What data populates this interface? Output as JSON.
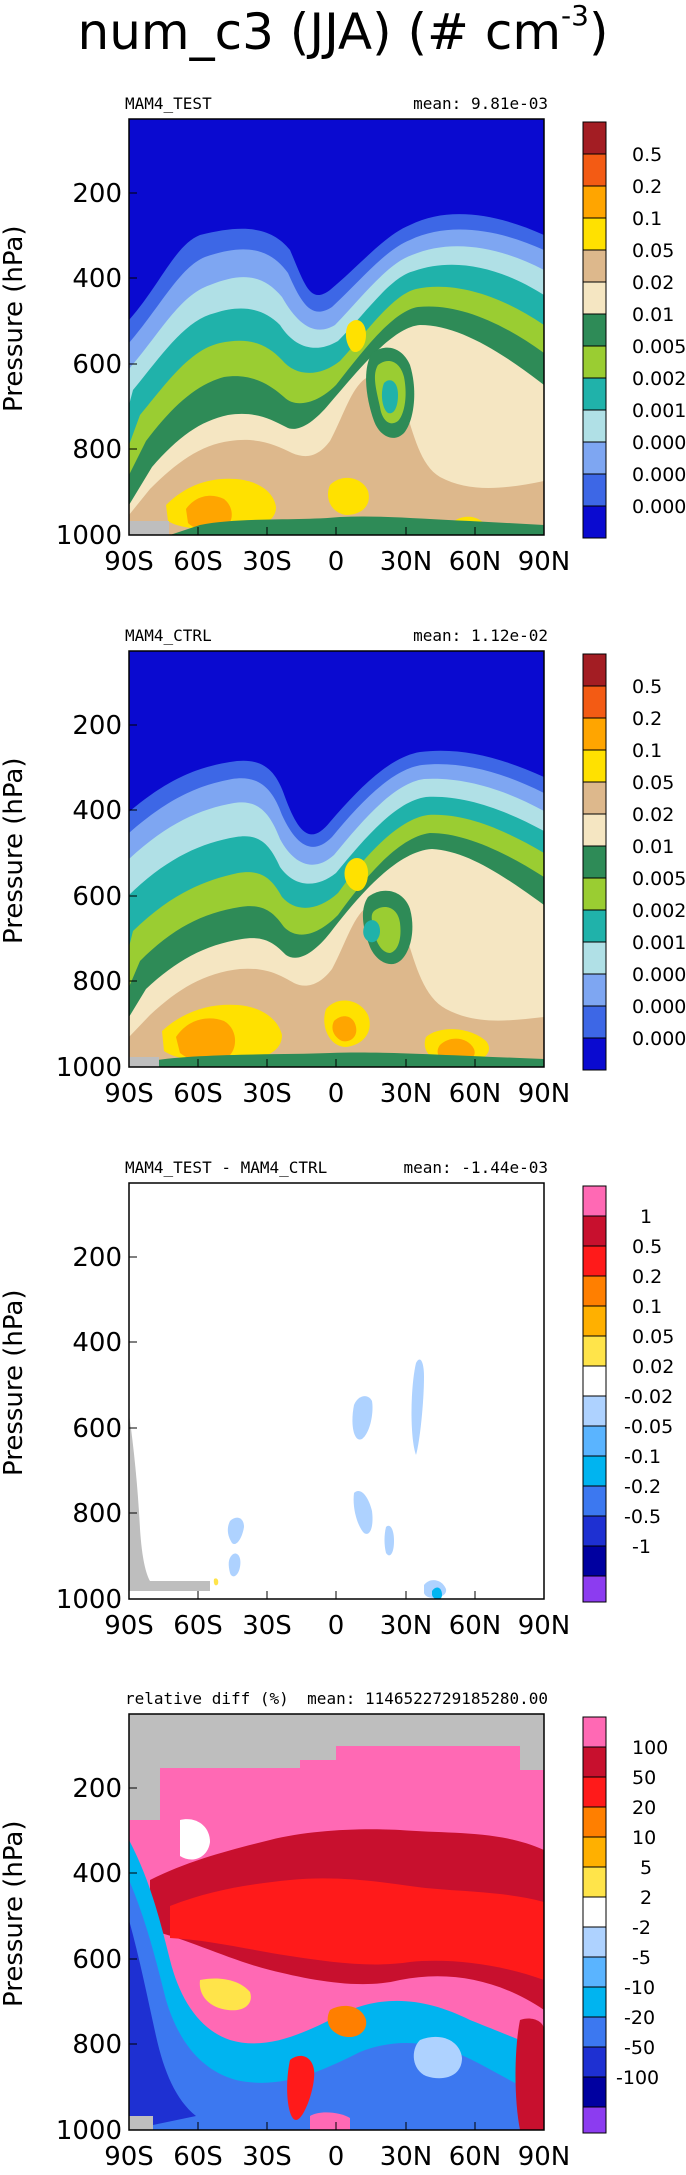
{
  "figure_title": {
    "main": "num_c3 (JJA) (# cm",
    "exp": "-3",
    "close": ")"
  },
  "chart_data": [
    {
      "type": "heatmap",
      "panel_label": "MAM4_TEST",
      "stat_label": "mean: 9.81e-03",
      "ylabel": "Pressure (hPa)",
      "xticks": [
        "90S",
        "60S",
        "30S",
        "0",
        "30N",
        "60N",
        "90N"
      ],
      "yticks": [
        "200",
        "400",
        "600",
        "800",
        "1000"
      ],
      "xlim": [
        -90,
        90
      ],
      "ylim": [
        1000,
        20
      ],
      "colorbar": {
        "labels": [
          "0.5",
          "0.2",
          "0.1",
          "0.05",
          "0.02",
          "0.01",
          "0.005",
          "0.002",
          "0.001",
          "0.0005",
          "0.0002",
          "0.0001"
        ],
        "colors": [
          "#a31d23",
          "#f35b14",
          "#ffa500",
          "#ffe100",
          "#ddb88c",
          "#f5e6c2",
          "#2e8b57",
          "#9acd32",
          "#20b2aa",
          "#b0e0e6",
          "#7ea6f2",
          "#3d67e6",
          "#0a0ad0"
        ]
      }
    },
    {
      "type": "heatmap",
      "panel_label": "MAM4_CTRL",
      "stat_label": "mean: 1.12e-02",
      "ylabel": "Pressure (hPa)",
      "xticks": [
        "90S",
        "60S",
        "30S",
        "0",
        "30N",
        "60N",
        "90N"
      ],
      "yticks": [
        "200",
        "400",
        "600",
        "800",
        "1000"
      ],
      "xlim": [
        -90,
        90
      ],
      "ylim": [
        1000,
        20
      ],
      "colorbar": {
        "labels": [
          "0.5",
          "0.2",
          "0.1",
          "0.05",
          "0.02",
          "0.01",
          "0.005",
          "0.002",
          "0.001",
          "0.0005",
          "0.0002",
          "0.0001"
        ],
        "colors": [
          "#a31d23",
          "#f35b14",
          "#ffa500",
          "#ffe100",
          "#ddb88c",
          "#f5e6c2",
          "#2e8b57",
          "#9acd32",
          "#20b2aa",
          "#b0e0e6",
          "#7ea6f2",
          "#3d67e6",
          "#0a0ad0"
        ]
      }
    },
    {
      "type": "heatmap",
      "panel_label": "MAM4_TEST - MAM4_CTRL",
      "stat_label": "mean: -1.44e-03",
      "ylabel": "Pressure (hPa)",
      "xticks": [
        "90S",
        "60S",
        "30S",
        "0",
        "30N",
        "60N",
        "90N"
      ],
      "yticks": [
        "200",
        "400",
        "600",
        "800",
        "1000"
      ],
      "xlim": [
        -90,
        90
      ],
      "ylim": [
        1000,
        20
      ],
      "colorbar": {
        "labels": [
          "1",
          "0.5",
          "0.2",
          "0.1",
          "0.05",
          "0.02",
          "-0.02",
          "-0.05",
          "-0.1",
          "-0.2",
          "-0.5",
          "-1"
        ],
        "colors": [
          "#ff69b4",
          "#c8102e",
          "#ff1a1a",
          "#ff7f00",
          "#ffb000",
          "#ffe44a",
          "#ffffff",
          "#aed2ff",
          "#5ab4ff",
          "#00b4f0",
          "#3c78f0",
          "#1e30d2",
          "#0000a0",
          "#8c3cf0"
        ]
      }
    },
    {
      "type": "heatmap",
      "panel_label": "relative diff (%)",
      "stat_label": "mean: 1146522729185280.00",
      "ylabel": "Pressure (hPa)",
      "xticks": [
        "90S",
        "60S",
        "30S",
        "0",
        "30N",
        "60N",
        "90N"
      ],
      "yticks": [
        "200",
        "400",
        "600",
        "800",
        "1000"
      ],
      "xlim": [
        -90,
        90
      ],
      "ylim": [
        1000,
        20
      ],
      "colorbar": {
        "labels": [
          "100",
          "50",
          "20",
          "10",
          "5",
          "2",
          "-2",
          "-5",
          "-10",
          "-20",
          "-50",
          "-100"
        ],
        "colors": [
          "#ff69b4",
          "#c8102e",
          "#ff1a1a",
          "#ff7f00",
          "#ffb000",
          "#ffe44a",
          "#ffffff",
          "#aed2ff",
          "#5ab4ff",
          "#00b4f0",
          "#3c78f0",
          "#1e30d2",
          "#0000a0",
          "#8c3cf0"
        ]
      }
    }
  ]
}
